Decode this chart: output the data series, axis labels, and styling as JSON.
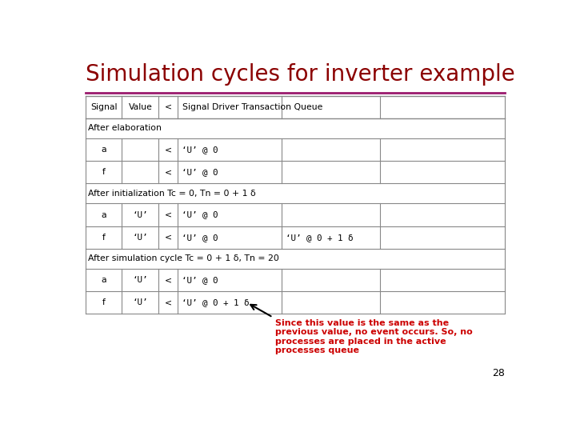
{
  "title": "Simulation cycles for inverter example",
  "title_color": "#8B0000",
  "title_fontsize": 20,
  "divider_color": "#9B1B6E",
  "bg_color": "#FFFFFF",
  "header_row": [
    "Signal",
    "Value",
    "<",
    "Signal Driver Transaction Queue",
    "",
    ""
  ],
  "section1_label": "After elaboration",
  "section1_rows": [
    [
      "a",
      "",
      "<",
      "‘U’ @ 0",
      "",
      ""
    ],
    [
      "f",
      "",
      "<",
      "‘U’ @ 0",
      "",
      ""
    ]
  ],
  "section2_label": "After initialization Tc = 0, Tn = 0 + 1 δ",
  "section2_rows": [
    [
      "a",
      "‘U’",
      "<",
      "‘U’ @ 0",
      "",
      ""
    ],
    [
      "f",
      "‘U’",
      "<",
      "‘U’ @ 0",
      "‘U’ @ 0 + 1 δ",
      ""
    ]
  ],
  "section3_label": "After simulation cycle Tc = 0 + 1 δ, Tn = 20",
  "section3_rows": [
    [
      "a",
      "‘U’",
      "<",
      "‘U’ @ 0",
      "",
      ""
    ],
    [
      "f",
      "‘U’",
      "<",
      "‘U’ @ 0 + 1 δ",
      "",
      ""
    ]
  ],
  "annotation_text": "Since this value is the same as the\nprevious value, no event occurs. So, no\nprocesses are placed in the active\nprocesses queue",
  "annotation_color": "#CC0000",
  "page_number": "28"
}
